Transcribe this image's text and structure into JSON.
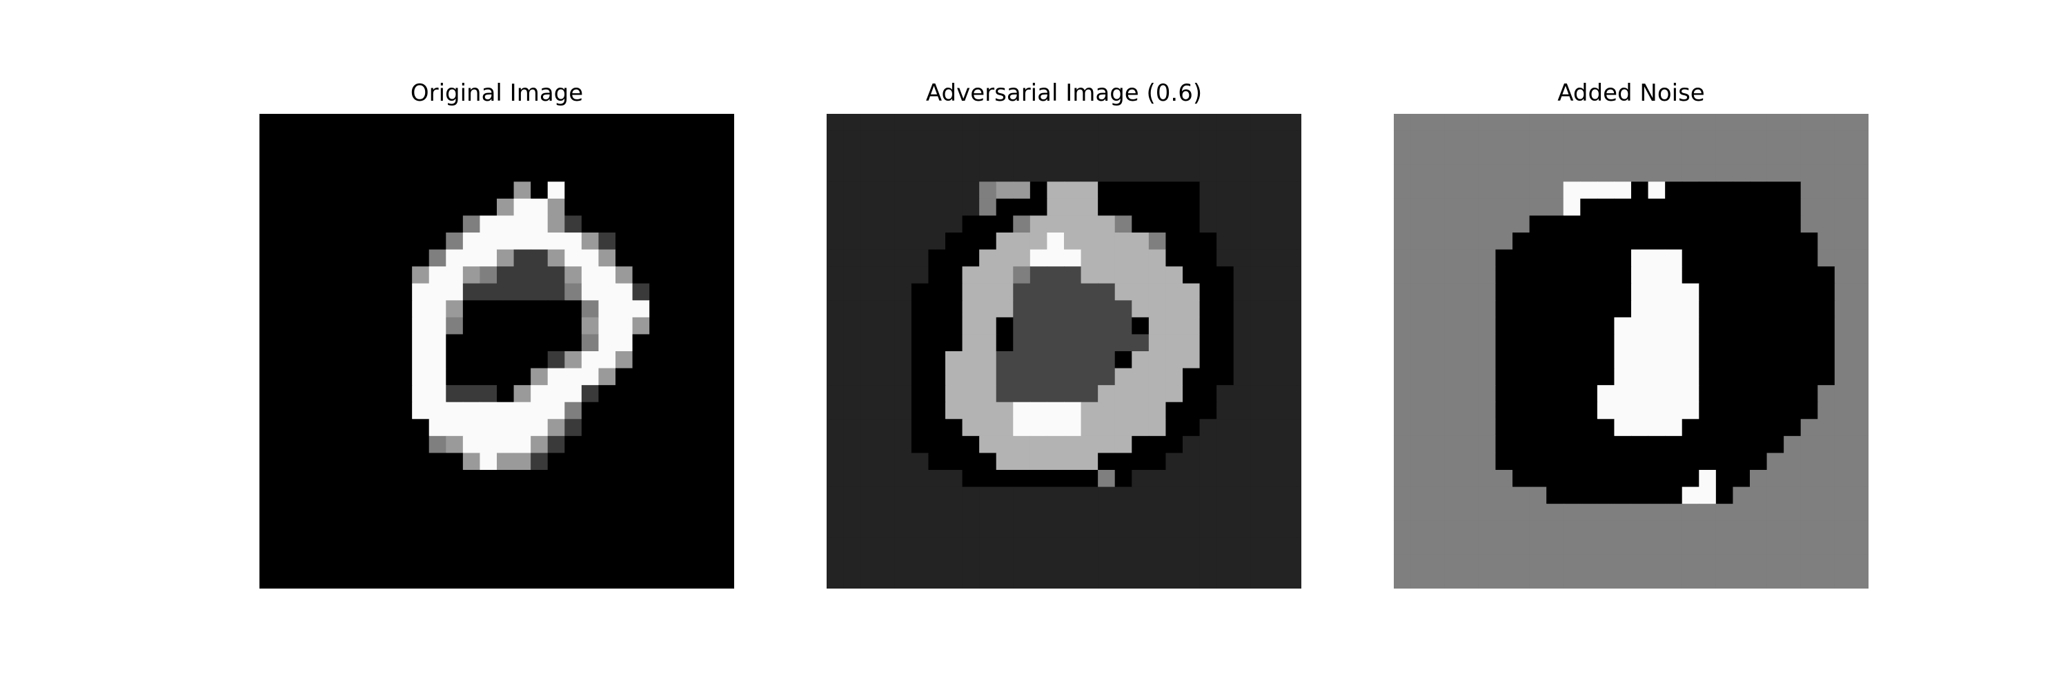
{
  "figure": {
    "panels": [
      {
        "id": "original",
        "title": "Original Image"
      },
      {
        "id": "adversarial",
        "title": "Adversarial Image (0.6)"
      },
      {
        "id": "noise",
        "title": "Added Noise"
      }
    ]
  },
  "image_grid": {
    "rows": 28,
    "cols": 28,
    "original_rows": [
      "............................",
      "............................",
      "............................",
      "............................",
      "...............G.W..........",
      "..............GWWG..........",
      "............gWWWWGd.........",
      "...........gWWWWWWWGd.......",
      "..........gWWWGddGWWG.......",
      ".........GWWGgddddGWWG......",
      ".........WWWddddddgWWWd.....",
      ".........WWG.......gWWW.....",
      ".........WWg.......GWWG.....",
      ".........WW........gWW......",
      ".........WW......dGWWG......",
      ".........WW.....GWWWG.......",
      ".........WWddd.GWWWd........",
      ".........WWWWWWWWWg.........",
      "..........WWWWWWWGd.........",
      "..........gGWWWWGd..........",
      "............GWGGd...........",
      "............................",
      "............................",
      "............................",
      "............................",
      "............................",
      "............................",
      "............................"
    ],
    "adversarial_rows": [
      "DDDDDDDDDDDDDDDDDDDDDDDDDDDD",
      "DDDDDDDDDDDDDDDDDDDDDDDDDDDD",
      "DDDDDDDDDDDDDDDDDDDDDDDDDDDD",
      "DDDDDDDDDDDDDDDDDDDDDDDDDDDD",
      "DDDDDDDDDgGGKLLLKKKKKKDDDDDD",
      "DDDDDDDDDgKKKLLLKKKKKKDDDDDD",
      "DDDDDDDDKKKgLLLLLgKKKKDDDDDD",
      "DDDDDDDKKKLLLWLLLLLgKKKDDDDD",
      "DDDDDDKKKLLLWWWLLLLLKKKDDDDD",
      "DDDDDDKKLLLgMMMLLLLLLKKKDDDD",
      "DDDDDKKKLLLMMMMMMLLLLLKKDDDD",
      "DDDDDKKKLLLMMMMMMMLLLLKKDDDD",
      "DDDDDKKKLLKMMMMMMMKLLLKKDDDD",
      "DDDDDKKKLLKMMMMMMMMLLLKKDDDD",
      "DDDDDKKLLLMMMMMMMKLLLLKKDDDD",
      "DDDDDKKLLLMMMMMMMLLLLKKKDDDD",
      "DDDDDKKLLLMMMMMMLLLLLKKDDDDD",
      "DDDDDKKLLLLWWWWLLLLLKKKDDDDD",
      "DDDDDKKKLLLWWWWLLLLLKKDDDDDD",
      "DDDDDKKKKLLLLLLLLLKKKDDDDDDD",
      "DDDDDDKKKKLLLLLLKKKKDDDDDDDD",
      "DDDDDDDDKKKKKKKKgKDDDDDDDDDD",
      "DDDDDDDDDDDDDDDDDDDDDDDDDDDD",
      "DDDDDDDDDDDDDDDDDDDDDDDDDDDD",
      "DDDDDDDDDDDDDDDDDDDDDDDDDDDD",
      "DDDDDDDDDDDDDDDDDDDDDDDDDDDD",
      "DDDDDDDDDDDDDDDDDDDDDDDDDDDD",
      "DDDDDDDDDDDDDDDDDDDDDDDDDDDD"
    ],
    "noise_rows": [
      "gggggggggggggggggggggggggggg",
      "gggggggggggggggggggggggggggg",
      "gggggggggggggggggggggggggggg",
      "gggggggggggggggggggggggggggg",
      "ggggggggggWWWWKWKKKKKKKKgggg",
      "ggggggggggWKKKKKKKKKKKKKgggg",
      "ggggggggKKKKKKKKKKKKKKKKgggg",
      "gggggggKKKKKKKKKKKKKKKKKKggg",
      "ggggggKKKKKKKKWWWKKKKKKKKggg",
      "ggggggKKKKKKKKWWWKKKKKKKKKgg",
      "ggggggKKKKKKKKWWWWKKKKKKKKgg",
      "ggggggKKKKKKKKWWWWKKKKKKKKgg",
      "ggggggKKKKKKKWWWWWKKKKKKKKgg",
      "ggggggKKKKKKKWWWWWKKKKKKKKgg",
      "ggggggKKKKKKKWWWWWKKKKKKKKgg",
      "ggggggKKKKKKKWWWWWKKKKKKKKgg",
      "ggggggKKKKKKWWWWWWKKKKKKKggg",
      "ggggggKKKKKKWWWWWWKKKKKKKggg",
      "ggggggKKKKKKKWWWWKKKKKKKgggg",
      "ggggggKKKKKKKKKKKKKKKKKggggg",
      "ggggggKKKKKKKKKKKKKKKKgggggg",
      "gggggggKKKKKKKKKKKWKKggggggg",
      "gggggggggKKKKKKKKWWKgggggggg",
      "gggggggggggggggggggggggggggg",
      "gggggggggggggggggggggggggggg",
      "gggggggggggggggggggggggggggg",
      "gggggggggggggggggggggggggggg",
      "gggggggggggggggggggggggggggg"
    ],
    "palette": {
      ".": "#000000",
      "K": "#000000",
      "d": "#3a3a3a",
      "D": "#232323",
      "M": "#464646",
      "g": "#7f7f7f",
      "G": "#9a9a9a",
      "L": "#b3b3b3",
      "W": "#fafafa"
    }
  }
}
